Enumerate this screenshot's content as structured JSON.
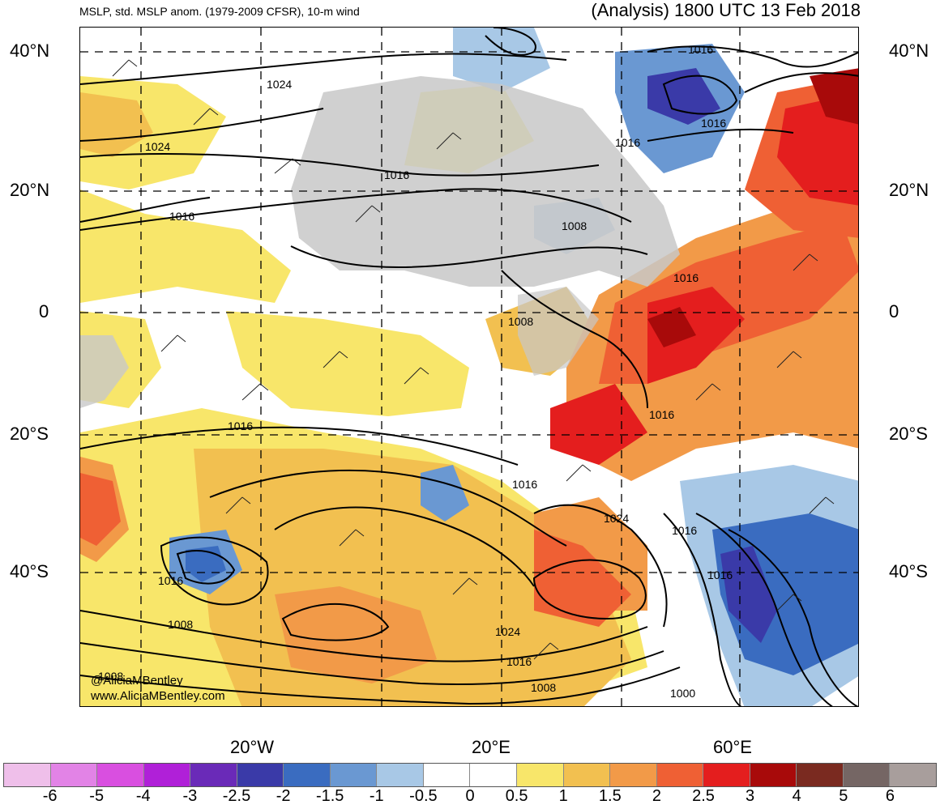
{
  "title_left": "MSLP, std. MSLP anom. (1979-2009 CFSR), 10-m wind",
  "title_right": "(Analysis) 1800 UTC 13 Feb 2018",
  "lat_labels": [
    "40°N",
    "20°N",
    "0",
    "20°S",
    "40°S"
  ],
  "lon_labels": [
    "20°W",
    "20°E",
    "60°E"
  ],
  "credits": [
    "@AliciaMBentley",
    "www.AliciaMBentley.com"
  ],
  "isobar_labels": [
    "1024",
    "1024",
    "1016",
    "1016",
    "1016",
    "1016",
    "1016",
    "1008",
    "1016",
    "1008",
    "1016",
    "1016",
    "1016",
    "1024",
    "1016",
    "1016",
    "1008",
    "1016",
    "1024",
    "1016",
    "1008",
    "1008",
    "1000"
  ],
  "colorbar": {
    "labels": [
      "-6",
      "-5",
      "-4",
      "-3",
      "-2.5",
      "-2",
      "-1.5",
      "-1",
      "-0.5",
      "0",
      "0.5",
      "1",
      "1.5",
      "2",
      "2.5",
      "3",
      "4",
      "5",
      "6"
    ],
    "colors": [
      "#efbfea",
      "#e283e6",
      "#d94fe0",
      "#b020d8",
      "#6a2ab8",
      "#3a3aa8",
      "#3a6cc0",
      "#6a98d2",
      "#a8c8e6",
      "#ffffff",
      "#ffffff",
      "#f8e66a",
      "#f2c050",
      "#f29a48",
      "#ef6034",
      "#e41e1e",
      "#a80a0a",
      "#7a2a20",
      "#756664",
      "#a89e9c"
    ]
  }
}
